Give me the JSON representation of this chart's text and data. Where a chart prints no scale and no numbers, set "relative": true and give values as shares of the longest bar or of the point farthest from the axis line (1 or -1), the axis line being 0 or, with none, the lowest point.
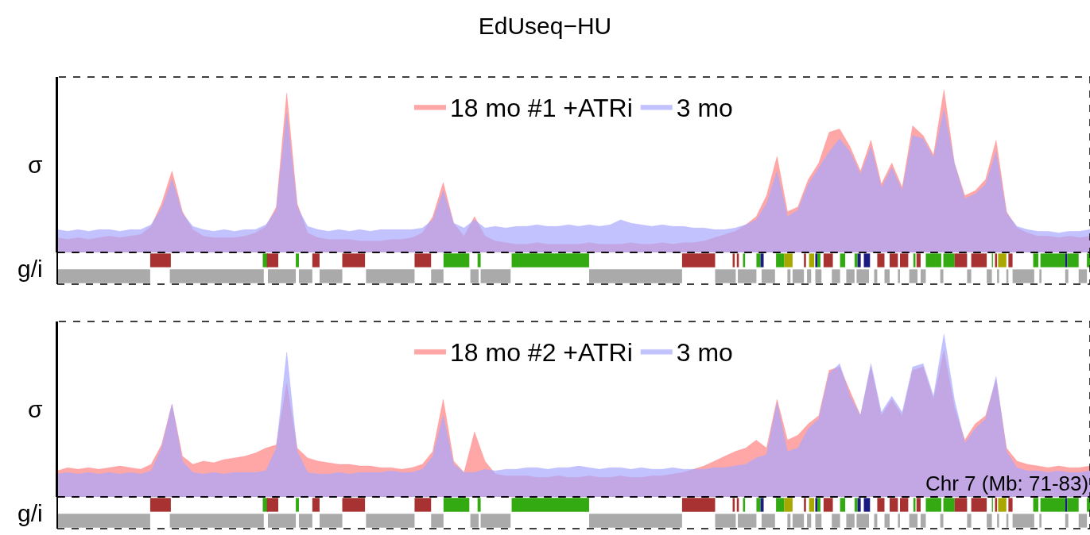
{
  "chart_data": [
    {
      "type": "area",
      "title": "EdUseq−HU",
      "ylabel": "σ",
      "relative": true,
      "legend": "top",
      "categories": [
        null,
        null,
        null,
        null,
        null,
        null,
        null,
        null,
        null,
        null,
        null,
        null,
        null,
        null,
        null,
        null,
        null,
        null,
        null,
        null,
        null,
        null,
        null,
        null,
        null,
        null,
        null,
        null,
        null,
        null,
        null,
        null,
        null,
        null,
        null,
        null,
        null,
        null,
        null,
        null,
        null,
        null,
        null,
        null,
        null,
        null,
        null,
        null,
        null,
        null,
        null,
        null,
        null,
        null,
        null,
        null,
        null,
        null,
        null,
        null,
        null,
        null,
        null,
        null,
        null,
        null,
        null,
        null,
        null,
        null,
        null,
        null,
        null,
        null,
        null,
        null,
        null,
        null,
        null,
        null,
        null,
        null,
        null,
        null,
        null,
        null,
        null,
        null,
        null,
        null,
        null,
        null,
        null,
        null,
        null,
        null,
        null,
        null,
        null,
        null
      ],
      "series": [
        {
          "name": "18 mo #1 +ATRi",
          "color": "#ff8080",
          "values": [
            0.09,
            0.08,
            0.09,
            0.08,
            0.09,
            0.1,
            0.09,
            0.1,
            0.11,
            0.16,
            0.3,
            0.5,
            0.25,
            0.14,
            0.1,
            0.09,
            0.09,
            0.09,
            0.1,
            0.12,
            0.16,
            0.28,
            0.98,
            0.3,
            0.12,
            0.09,
            0.08,
            0.08,
            0.08,
            0.07,
            0.07,
            0.07,
            0.08,
            0.08,
            0.09,
            0.12,
            0.22,
            0.43,
            0.18,
            0.1,
            0.22,
            0.1,
            0.07,
            0.06,
            0.05,
            0.05,
            0.06,
            0.05,
            0.05,
            0.05,
            0.05,
            0.06,
            0.05,
            0.05,
            0.05,
            0.06,
            0.05,
            0.05,
            0.06,
            0.05,
            0.06,
            0.06,
            0.07,
            0.09,
            0.11,
            0.13,
            0.17,
            0.22,
            0.35,
            0.59,
            0.25,
            0.28,
            0.45,
            0.55,
            0.74,
            0.76,
            0.65,
            0.5,
            0.69,
            0.42,
            0.55,
            0.4,
            0.78,
            0.72,
            0.6,
            1.0,
            0.55,
            0.35,
            0.38,
            0.45,
            0.69,
            0.25,
            0.15,
            0.12,
            0.1,
            0.1,
            0.09,
            0.1,
            0.09,
            0.1
          ]
        },
        {
          "name": "3 mo",
          "color": "#a8a8ff",
          "values": [
            0.14,
            0.13,
            0.14,
            0.13,
            0.14,
            0.14,
            0.13,
            0.14,
            0.14,
            0.17,
            0.27,
            0.45,
            0.24,
            0.16,
            0.14,
            0.13,
            0.14,
            0.13,
            0.14,
            0.14,
            0.17,
            0.26,
            0.86,
            0.28,
            0.16,
            0.14,
            0.13,
            0.14,
            0.13,
            0.14,
            0.13,
            0.14,
            0.14,
            0.14,
            0.14,
            0.15,
            0.2,
            0.38,
            0.18,
            0.15,
            0.2,
            0.15,
            0.16,
            0.15,
            0.16,
            0.16,
            0.17,
            0.16,
            0.16,
            0.17,
            0.16,
            0.17,
            0.16,
            0.17,
            0.2,
            0.18,
            0.17,
            0.16,
            0.17,
            0.16,
            0.16,
            0.15,
            0.15,
            0.14,
            0.14,
            0.15,
            0.17,
            0.2,
            0.3,
            0.5,
            0.22,
            0.26,
            0.42,
            0.52,
            0.62,
            0.7,
            0.62,
            0.48,
            0.65,
            0.4,
            0.52,
            0.38,
            0.72,
            0.7,
            0.58,
            0.88,
            0.55,
            0.33,
            0.36,
            0.42,
            0.62,
            0.24,
            0.16,
            0.14,
            0.13,
            0.13,
            0.12,
            0.13,
            0.13,
            0.14
          ]
        }
      ]
    },
    {
      "type": "other",
      "ylabel": "g/i"
    },
    {
      "type": "area",
      "ylabel": "σ",
      "relative": true,
      "legend": "top",
      "annotations": [
        "Chr 7 (Mb: 71-83)"
      ],
      "categories": [
        null,
        null,
        null,
        null,
        null,
        null,
        null,
        null,
        null,
        null,
        null,
        null,
        null,
        null,
        null,
        null,
        null,
        null,
        null,
        null,
        null,
        null,
        null,
        null,
        null,
        null,
        null,
        null,
        null,
        null,
        null,
        null,
        null,
        null,
        null,
        null,
        null,
        null,
        null,
        null,
        null,
        null,
        null,
        null,
        null,
        null,
        null,
        null,
        null,
        null,
        null,
        null,
        null,
        null,
        null,
        null,
        null,
        null,
        null,
        null,
        null,
        null,
        null,
        null,
        null,
        null,
        null,
        null,
        null,
        null,
        null,
        null,
        null,
        null,
        null,
        null,
        null,
        null,
        null,
        null,
        null,
        null,
        null,
        null,
        null,
        null,
        null,
        null,
        null,
        null,
        null,
        null,
        null,
        null,
        null,
        null,
        null,
        null,
        null,
        null
      ],
      "series": [
        {
          "name": "18 mo #2 +ATRi",
          "color": "#ff8080",
          "values": [
            0.16,
            0.18,
            0.17,
            0.18,
            0.17,
            0.18,
            0.19,
            0.18,
            0.17,
            0.2,
            0.32,
            0.57,
            0.25,
            0.2,
            0.22,
            0.21,
            0.23,
            0.24,
            0.25,
            0.27,
            0.3,
            0.32,
            0.7,
            0.3,
            0.24,
            0.22,
            0.21,
            0.2,
            0.2,
            0.19,
            0.19,
            0.18,
            0.18,
            0.17,
            0.18,
            0.2,
            0.28,
            0.6,
            0.22,
            0.15,
            0.4,
            0.22,
            0.14,
            0.13,
            0.13,
            0.13,
            0.12,
            0.12,
            0.13,
            0.12,
            0.12,
            0.13,
            0.12,
            0.12,
            0.13,
            0.12,
            0.12,
            0.13,
            0.13,
            0.14,
            0.15,
            0.17,
            0.19,
            0.22,
            0.25,
            0.28,
            0.3,
            0.35,
            0.3,
            0.6,
            0.35,
            0.38,
            0.45,
            0.5,
            0.78,
            0.8,
            0.65,
            0.5,
            0.8,
            0.5,
            0.6,
            0.5,
            0.78,
            0.8,
            0.6,
            0.9,
            0.55,
            0.35,
            0.45,
            0.5,
            0.72,
            0.3,
            0.22,
            0.2,
            0.19,
            0.18,
            0.19,
            0.18,
            0.18,
            0.19
          ]
        },
        {
          "name": "3 mo",
          "color": "#a8a8ff",
          "values": [
            0.14,
            0.15,
            0.14,
            0.15,
            0.14,
            0.15,
            0.14,
            0.15,
            0.14,
            0.16,
            0.3,
            0.57,
            0.22,
            0.15,
            0.14,
            0.15,
            0.14,
            0.15,
            0.15,
            0.15,
            0.16,
            0.3,
            0.89,
            0.28,
            0.15,
            0.14,
            0.14,
            0.15,
            0.14,
            0.15,
            0.15,
            0.15,
            0.16,
            0.15,
            0.15,
            0.17,
            0.25,
            0.5,
            0.2,
            0.15,
            0.15,
            0.17,
            0.16,
            0.17,
            0.17,
            0.18,
            0.18,
            0.17,
            0.18,
            0.18,
            0.19,
            0.18,
            0.17,
            0.18,
            0.18,
            0.17,
            0.18,
            0.17,
            0.17,
            0.18,
            0.17,
            0.17,
            0.17,
            0.18,
            0.18,
            0.19,
            0.2,
            0.24,
            0.26,
            0.58,
            0.28,
            0.3,
            0.42,
            0.48,
            0.76,
            0.82,
            0.62,
            0.5,
            0.82,
            0.52,
            0.62,
            0.52,
            0.8,
            0.82,
            0.62,
            1.0,
            0.6,
            0.33,
            0.42,
            0.48,
            0.74,
            0.28,
            0.18,
            0.16,
            0.16,
            0.15,
            0.16,
            0.15,
            0.15,
            0.16
          ]
        }
      ]
    },
    {
      "type": "other",
      "ylabel": "g/i"
    }
  ]
}
